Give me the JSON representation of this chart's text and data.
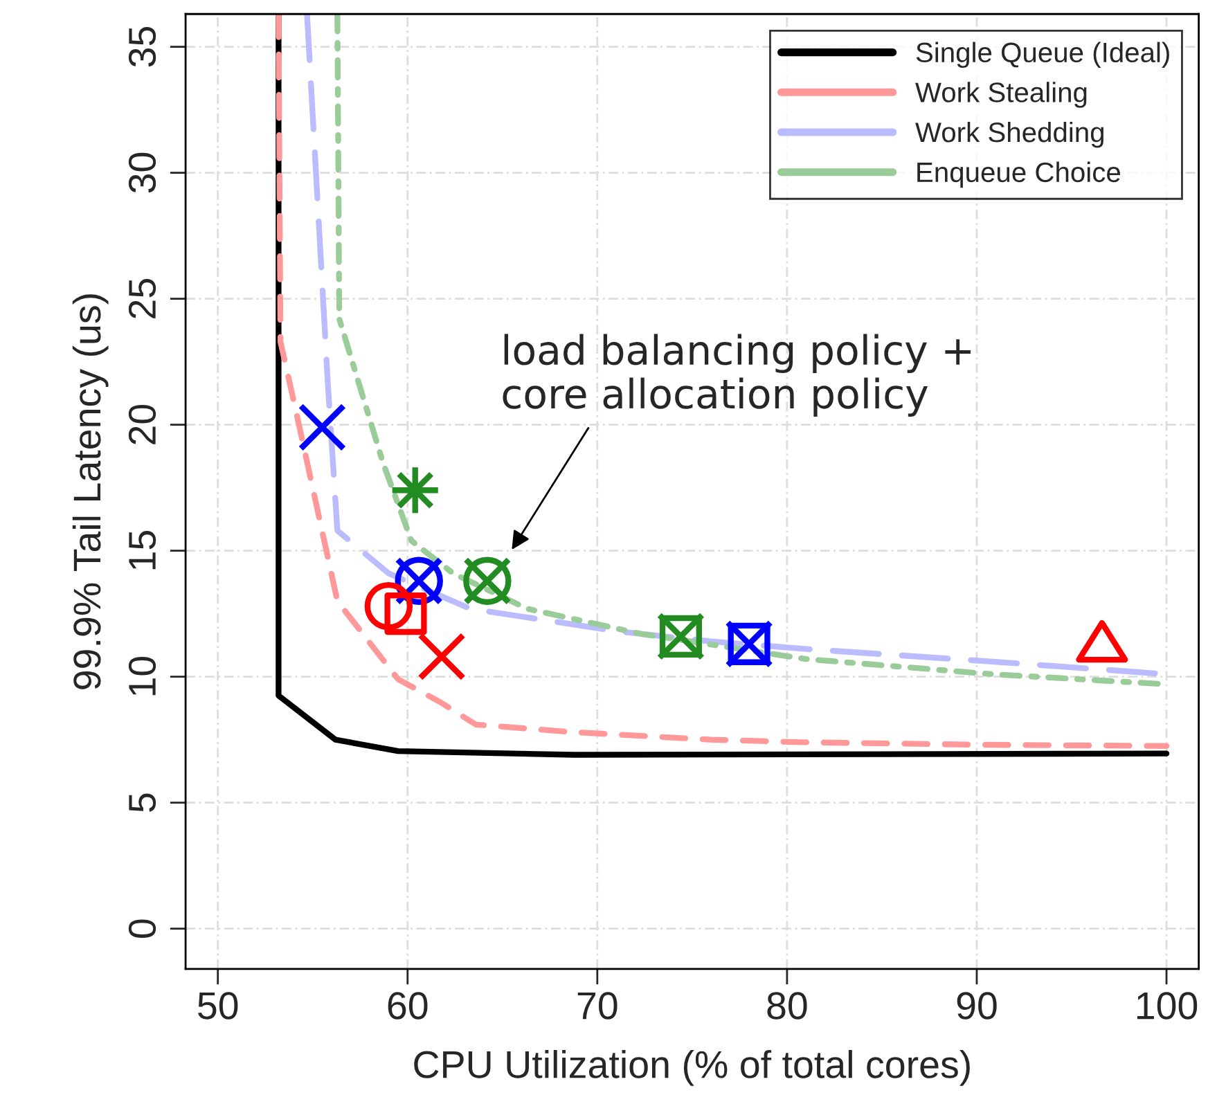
{
  "chart_data": {
    "type": "line",
    "xlabel": "CPU Utilization (% of total cores)",
    "ylabel": "99.9% Tail Latency (us)",
    "xlim": [
      48.3,
      101.7
    ],
    "ylim": [
      -1.6,
      36.3
    ],
    "xticks": [
      50,
      60,
      70,
      80,
      90,
      100
    ],
    "yticks": [
      0,
      5,
      10,
      15,
      20,
      25,
      30,
      35
    ],
    "grid": true,
    "legend": "top right",
    "series": [
      {
        "name": "Single Queue (Ideal)",
        "color": "#000000",
        "line_style": "solid",
        "x": [
          53.2,
          53.2,
          56.2,
          59.5,
          68.8,
          100
        ],
        "values": [
          36.3,
          9.25,
          7.5,
          7.05,
          6.9,
          6.95
        ]
      },
      {
        "name": "Work Stealing",
        "color": "#ff9999",
        "line_style": "dashed",
        "x": [
          53.2,
          53.3,
          54.1,
          56.3,
          59.5,
          61.7,
          63.6,
          68.7,
          76,
          80.8,
          90,
          100
        ],
        "values": [
          36.3,
          23.3,
          20.6,
          13.0,
          9.9,
          9.0,
          8.1,
          7.8,
          7.5,
          7.4,
          7.3,
          7.25
        ]
      },
      {
        "name": "Work Shedding",
        "color": "#bbbbff",
        "line_style": "longdash",
        "x": [
          54.7,
          55.8,
          56.3,
          59.0,
          63.3,
          71.1,
          76,
          81,
          90.8,
          100
        ],
        "values": [
          36.3,
          21.6,
          15.8,
          14.1,
          12.7,
          11.8,
          11.4,
          11.1,
          10.6,
          10.1
        ]
      },
      {
        "name": "Enqueue Choice",
        "color": "#99cc99",
        "line_style": "dashdot",
        "x": [
          56.3,
          56.4,
          58.7,
          60.2,
          62.4,
          66.3,
          72.3,
          81,
          90.8,
          100
        ],
        "values": [
          36.3,
          24.2,
          18.5,
          15.4,
          14.1,
          12.7,
          11.7,
          10.7,
          10.1,
          9.7
        ]
      },
      {
        "type": "scatter",
        "color": "#0000ff",
        "marker": "cross",
        "x": [
          55.5
        ],
        "values": [
          19.9
        ]
      },
      {
        "type": "scatter",
        "color": "#228b22",
        "marker": "star",
        "x": [
          60.4
        ],
        "values": [
          17.4
        ]
      },
      {
        "type": "scatter",
        "color": "#0000ff",
        "marker": "circle",
        "x": [
          60.6
        ],
        "values": [
          13.8
        ]
      },
      {
        "type": "scatter",
        "color": "#0000ff",
        "marker": "cross",
        "x": [
          60.6
        ],
        "values": [
          13.8
        ]
      },
      {
        "type": "scatter",
        "color": "#ff0000",
        "marker": "circle",
        "x": [
          59.0
        ],
        "values": [
          12.8
        ]
      },
      {
        "type": "scatter",
        "color": "#ff0000",
        "marker": "square",
        "x": [
          59.9
        ],
        "values": [
          12.5
        ]
      },
      {
        "type": "scatter",
        "color": "#ff0000",
        "marker": "cross",
        "x": [
          61.8
        ],
        "values": [
          10.8
        ]
      },
      {
        "type": "scatter",
        "color": "#228b22",
        "marker": "circle",
        "x": [
          64.2
        ],
        "values": [
          13.8
        ]
      },
      {
        "type": "scatter",
        "color": "#228b22",
        "marker": "cross",
        "x": [
          64.2
        ],
        "values": [
          13.8
        ]
      },
      {
        "type": "scatter",
        "color": "#228b22",
        "marker": "square",
        "x": [
          74.4
        ],
        "values": [
          11.6
        ]
      },
      {
        "type": "scatter",
        "color": "#228b22",
        "marker": "cross",
        "x": [
          74.4
        ],
        "values": [
          11.6
        ]
      },
      {
        "type": "scatter",
        "color": "#0000ff",
        "marker": "square",
        "x": [
          78.0
        ],
        "values": [
          11.3
        ]
      },
      {
        "type": "scatter",
        "color": "#0000ff",
        "marker": "cross",
        "x": [
          78.0
        ],
        "values": [
          11.3
        ]
      },
      {
        "type": "scatter",
        "color": "#ff0000",
        "marker": "triangle",
        "x": [
          96.6
        ],
        "values": [
          11.3
        ]
      }
    ],
    "annotations": [
      "load balancing policy +\ncore allocation policy"
    ]
  }
}
